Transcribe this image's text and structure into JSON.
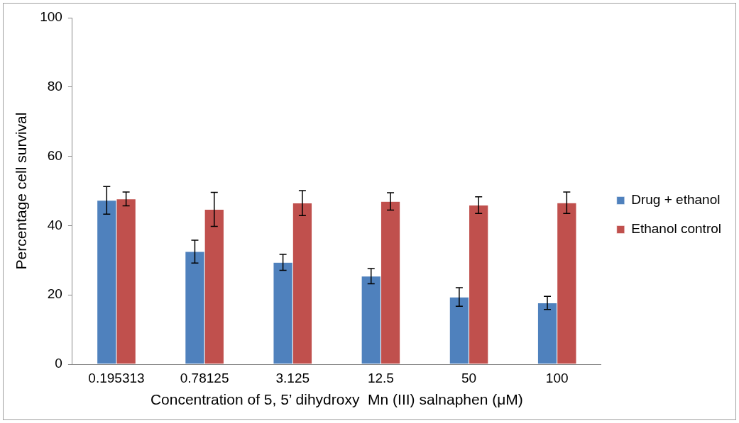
{
  "chart_data": {
    "type": "bar",
    "xlabel": "Concentration of 5, 5’ dihydroxy  Mn (III) salnaphen (μM)",
    "ylabel": "Percentage cell survival",
    "categories": [
      "0.195313",
      "0.78125",
      "3.125",
      "12.5",
      "50",
      "100"
    ],
    "series": [
      {
        "name": "Drug + ethanol",
        "color": "#4f81bd",
        "values": [
          47.3,
          32.5,
          29.4,
          25.4,
          19.4,
          17.7
        ],
        "errors": [
          4,
          3.3,
          2.3,
          2.2,
          2.7,
          1.9
        ]
      },
      {
        "name": "Ethanol control",
        "color": "#c0504d",
        "values": [
          47.7,
          44.7,
          46.5,
          47,
          45.9,
          46.6
        ],
        "errors": [
          2,
          4.9,
          3.6,
          2.5,
          2.4,
          3.1
        ]
      }
    ],
    "ylim": [
      0,
      100
    ],
    "yticks": [
      0,
      20,
      40,
      60,
      80,
      100
    ],
    "grid": false,
    "legend": "right"
  }
}
